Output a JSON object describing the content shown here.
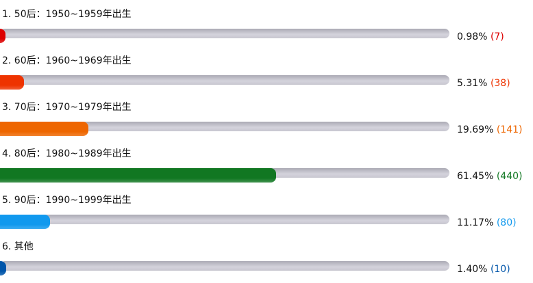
{
  "items": [
    {
      "label": "1.  50后：1950~1959年出生",
      "percent": "0.98%",
      "count": "(7)",
      "value": 0.98,
      "color": "#dd0000"
    },
    {
      "label": "2.  60后：1960~1969年出生",
      "percent": "5.31%",
      "count": "(38)",
      "value": 5.31,
      "color": "#ee3300"
    },
    {
      "label": "3.  70后：1970~1979年出生",
      "percent": "19.69%",
      "count": "(141)",
      "value": 19.69,
      "color": "#ee6600"
    },
    {
      "label": "4.  80后：1980~1989年出生",
      "percent": "61.45%",
      "count": "(440)",
      "value": 61.45,
      "color": "#117722"
    },
    {
      "label": "5.  90后：1990~1999年出生",
      "percent": "11.17%",
      "count": "(80)",
      "value": 11.17,
      "color": "#1199ee"
    },
    {
      "label": "6.  其他",
      "percent": "1.40%",
      "count": "(10)",
      "value": 1.4,
      "color": "#0055aa"
    }
  ]
}
